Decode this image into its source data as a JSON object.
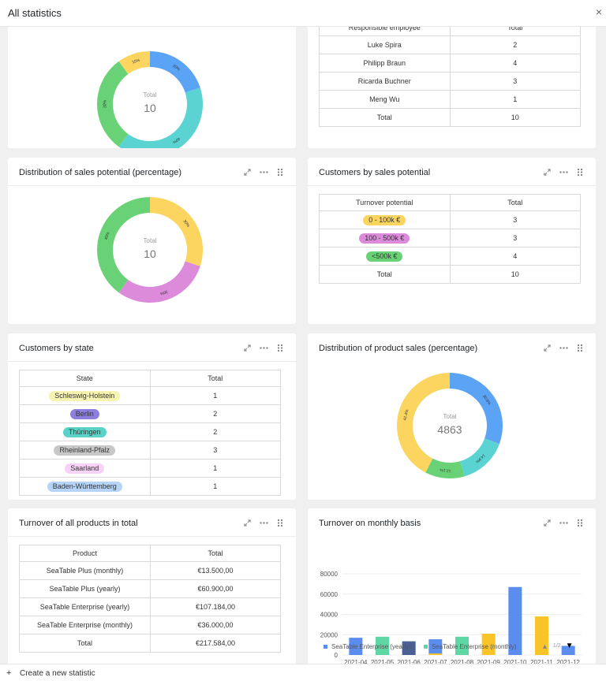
{
  "header": {
    "title": "All statistics",
    "close_label": "×"
  },
  "footer": {
    "create_label": "Create a new statistic",
    "plus": "+"
  },
  "colors": {
    "blue": "#5aa3f5",
    "teal": "#5ad3d2",
    "green": "#6ad276",
    "yellow": "#fbd55f",
    "purple": "#dc8bdb",
    "bar_blue": "#5b8def",
    "bar_green": "#5ed7a4",
    "bar_navy": "#4a5f94",
    "bar_yellow": "#f9c427"
  },
  "icons": {
    "expand": "expand-icon",
    "more": "more-icon",
    "drag": "drag-handle-icon"
  },
  "cards": {
    "c1": {
      "title": "",
      "total_label": "Total",
      "total": "10",
      "segments": [
        {
          "value": 20,
          "color": "#5aa3f5",
          "label": "20%"
        },
        {
          "value": 40,
          "color": "#5ad3d2",
          "label": "40%"
        },
        {
          "value": 30,
          "color": "#6ad276",
          "label": "30%"
        },
        {
          "value": 10,
          "color": "#fbd55f",
          "label": "10%"
        }
      ]
    },
    "c2": {
      "title": "",
      "headers": [
        "Responsible employee",
        "Total"
      ],
      "rows": [
        [
          "Luke Spira",
          "2"
        ],
        [
          "Philipp Braun",
          "4"
        ],
        [
          "Ricarda Buchner",
          "3"
        ],
        [
          "Meng Wu",
          "1"
        ],
        [
          "Total",
          "10"
        ]
      ]
    },
    "c3": {
      "title": "Distribution of sales potential (percentage)",
      "total_label": "Total",
      "total": "10",
      "segments": [
        {
          "value": 30,
          "color": "#fbd55f",
          "label": "30%"
        },
        {
          "value": 30,
          "color": "#dc8bdb",
          "label": "30%"
        },
        {
          "value": 40,
          "color": "#6ad276",
          "label": "40%"
        }
      ]
    },
    "c4": {
      "title": "Customers by sales potential",
      "headers": [
        "Turnover potential",
        "Total"
      ],
      "rows": [
        {
          "label": "0 - 100k €",
          "color": "#fbd55f",
          "total": "3"
        },
        {
          "label": "100 - 500k €",
          "color": "#dc8bdb",
          "total": "3"
        },
        {
          "label": "<500k €",
          "color": "#6ad276",
          "total": "4"
        }
      ],
      "total_row": [
        "Total",
        "10"
      ]
    },
    "c5": {
      "title": "Customers by state",
      "headers": [
        "State",
        "Total"
      ],
      "rows": [
        {
          "label": "Schleswig-Holstein",
          "color": "#f7f3b0",
          "total": "1"
        },
        {
          "label": "Berlin",
          "color": "#8c7fe0",
          "total": "2"
        },
        {
          "label": "Thüringen",
          "color": "#5ad3c6",
          "total": "2"
        },
        {
          "label": "Rheinland-Pfalz",
          "color": "#c8c8c8",
          "total": "3"
        },
        {
          "label": "Saarland",
          "color": "#f8d2f6",
          "total": "1"
        },
        {
          "label": "Baden-Württemberg",
          "color": "#b6d4f7",
          "total": "1"
        }
      ]
    },
    "c6": {
      "title": "Distribution of product sales (percentage)",
      "total_label": "Total",
      "total": "4863",
      "segments": [
        {
          "value": 30.6,
          "color": "#5aa3f5",
          "label": "30.6%"
        },
        {
          "value": 14.9,
          "color": "#5ad3d2",
          "label": "14.9%"
        },
        {
          "value": 12.1,
          "color": "#6ad276",
          "label": "12.1%"
        },
        {
          "value": 42.4,
          "color": "#fbd55f",
          "label": "42.4%"
        }
      ]
    },
    "c7": {
      "title": "Turnover of all products in total",
      "headers": [
        "Product",
        "Total"
      ],
      "rows": [
        [
          "SeaTable Plus (monthly)",
          "€13.500,00"
        ],
        [
          "SeaTable Plus (yearly)",
          "€60.900,00"
        ],
        [
          "SeaTable Enterprise (yearly)",
          "€107.184,00"
        ],
        [
          "SeaTable Enterprise (monthly)",
          "€36.000,00"
        ],
        [
          "Total",
          "€217.584,00"
        ]
      ]
    },
    "c8": {
      "title": "Turnover on monthly basis",
      "legend": [
        {
          "name": "SeaTable Enterprise (yearly)",
          "color": "#5b8def"
        },
        {
          "name": "SeaTable Enterprise (monthly)",
          "color": "#5ed7a4"
        }
      ],
      "pager": "1/2",
      "pager_up": "▲",
      "pager_down": "▼"
    }
  },
  "chart_data": {
    "type": "bar",
    "title": "Turnover on monthly basis",
    "categories": [
      "2021-04",
      "2021-05",
      "2021-06",
      "2021-07",
      "2021-08",
      "2021-09",
      "2021-10",
      "2021-11",
      "2021-12"
    ],
    "ylim": [
      0,
      80000
    ],
    "yticks": [
      "0",
      "20000",
      "40000",
      "60000",
      "80000"
    ],
    "bars": [
      {
        "category": "2021-04",
        "value": 17000,
        "color": "#5b8def"
      },
      {
        "category": "2021-05",
        "value": 18000,
        "color": "#5ed7a4"
      },
      {
        "category": "2021-06",
        "value": 13500,
        "color": "#4a5f94"
      },
      {
        "category": "2021-07",
        "value": 15500,
        "color": "#5b8def"
      },
      {
        "category": "2021-07",
        "value": 1500,
        "color": "#f9c427"
      },
      {
        "category": "2021-08",
        "value": 18000,
        "color": "#5ed7a4"
      },
      {
        "category": "2021-09",
        "value": 21000,
        "color": "#f9c427"
      },
      {
        "category": "2021-10",
        "value": 67000,
        "color": "#5b8def"
      },
      {
        "category": "2021-11",
        "value": 38000,
        "color": "#f9c427"
      },
      {
        "category": "2021-12",
        "value": 9000,
        "color": "#5b8def"
      }
    ]
  }
}
